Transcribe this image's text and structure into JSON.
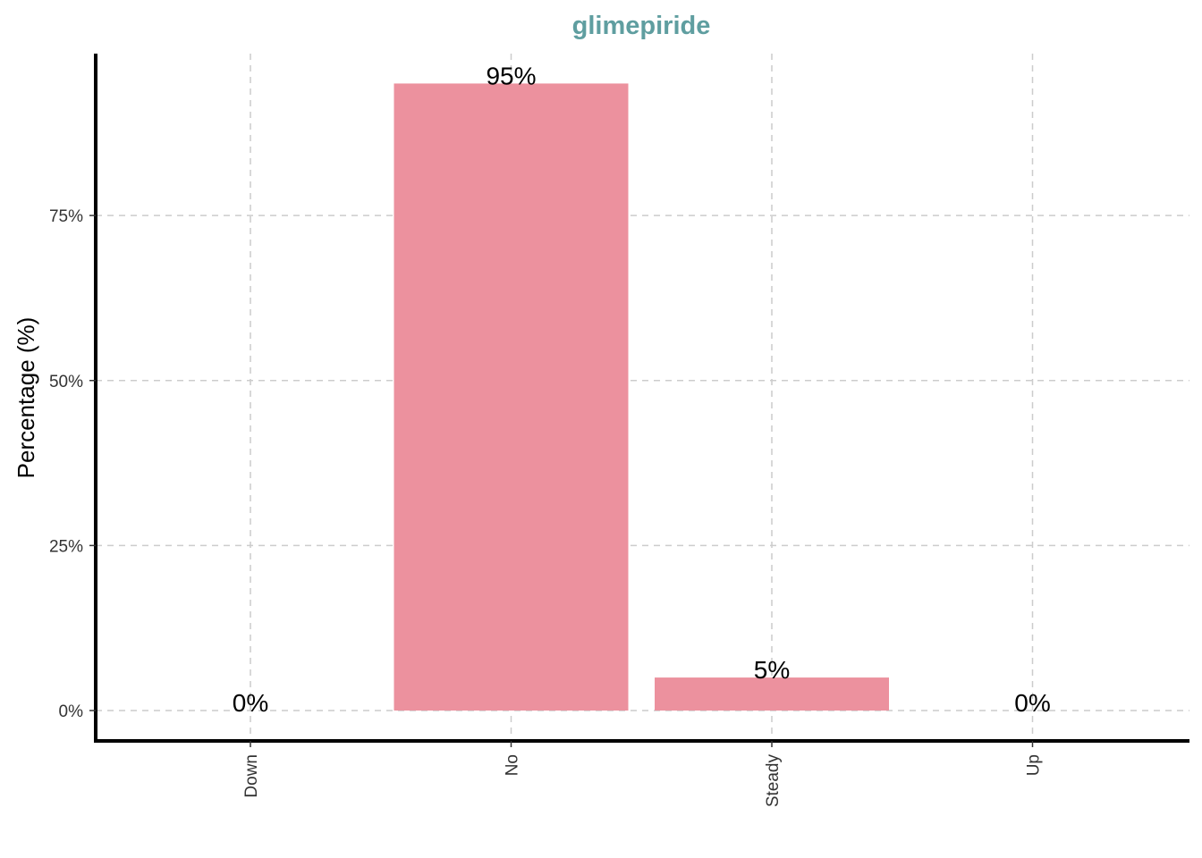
{
  "chart_data": {
    "type": "bar",
    "title": "glimepiride",
    "xlabel": "",
    "ylabel": "Percentage (%)",
    "categories": [
      "Down",
      "No",
      "Steady",
      "Up"
    ],
    "values": [
      0,
      95,
      5,
      0
    ],
    "data_labels": [
      "0%",
      "95%",
      "5%",
      "0%"
    ],
    "ylim": [
      0,
      100
    ],
    "yticks": [
      0,
      25,
      50,
      75
    ],
    "ytick_labels": [
      "0%",
      "25%",
      "50%",
      "75%"
    ],
    "bar_color": "#ec919e",
    "title_color": "#5f9ea0",
    "grid": true,
    "legend": "none"
  }
}
